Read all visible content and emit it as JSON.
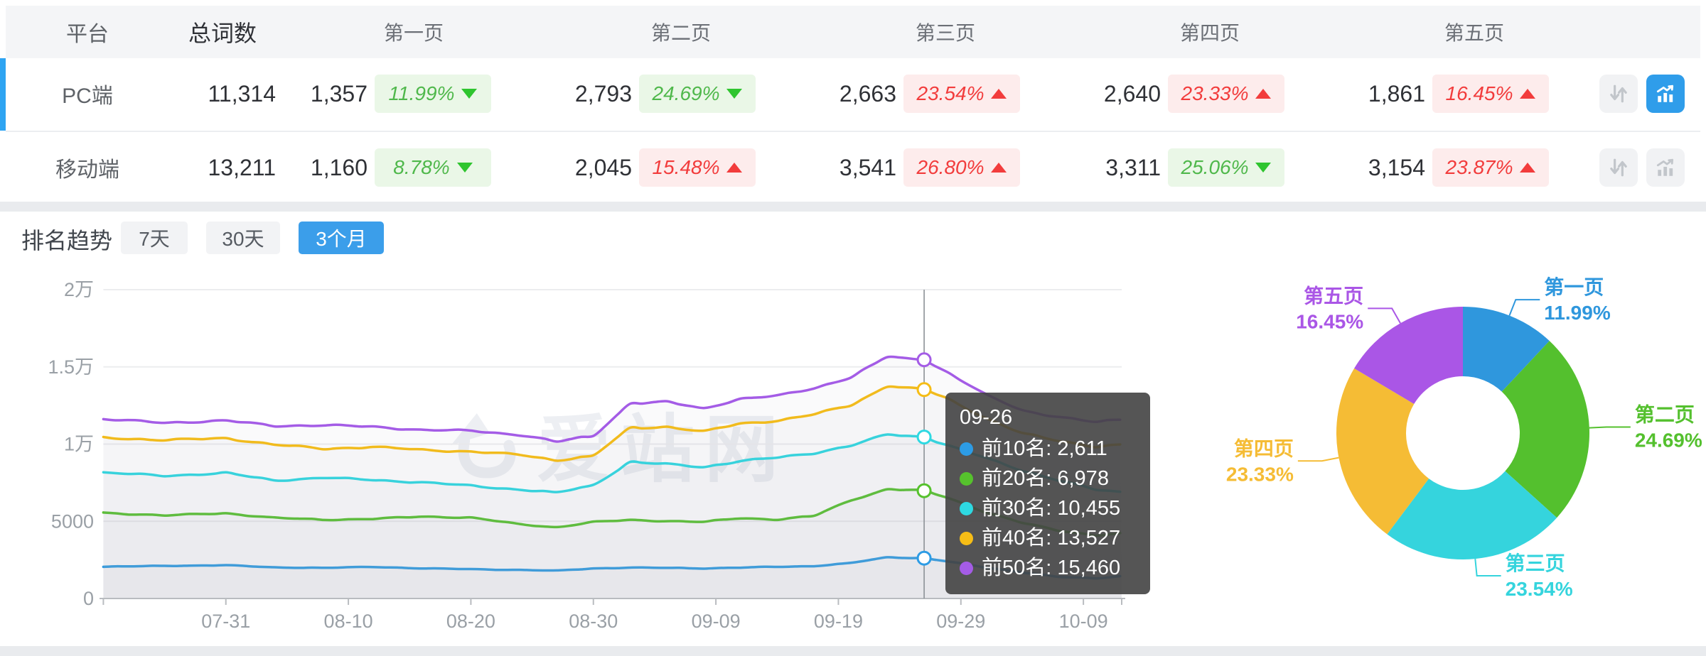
{
  "table": {
    "headers": [
      "平台",
      "总词数",
      "第一页",
      "第二页",
      "第三页",
      "第四页",
      "第五页"
    ],
    "rows": [
      {
        "platform": "PC端",
        "total": "11,314",
        "selected": true,
        "pages": [
          {
            "count": "1,357",
            "pct": "11.99%",
            "dir": "down"
          },
          {
            "count": "2,793",
            "pct": "24.69%",
            "dir": "down"
          },
          {
            "count": "2,663",
            "pct": "23.54%",
            "dir": "up"
          },
          {
            "count": "2,640",
            "pct": "23.33%",
            "dir": "up"
          },
          {
            "count": "1,861",
            "pct": "16.45%",
            "dir": "up"
          }
        ]
      },
      {
        "platform": "移动端",
        "total": "13,211",
        "selected": false,
        "pages": [
          {
            "count": "1,160",
            "pct": "8.78%",
            "dir": "down"
          },
          {
            "count": "2,045",
            "pct": "15.48%",
            "dir": "up"
          },
          {
            "count": "3,541",
            "pct": "26.80%",
            "dir": "up"
          },
          {
            "count": "3,311",
            "pct": "25.06%",
            "dir": "down"
          },
          {
            "count": "3,154",
            "pct": "23.87%",
            "dir": "up"
          }
        ]
      }
    ]
  },
  "trend": {
    "title": "排名趋势",
    "tabs": [
      {
        "label": "7天",
        "active": false
      },
      {
        "label": "30天",
        "active": false
      },
      {
        "label": "3个月",
        "active": true
      }
    ],
    "tooltip": {
      "title": "09-26",
      "items": [
        {
          "text": "前10名: 2,611",
          "color": "#2d9ce5"
        },
        {
          "text": "前20名: 6,978",
          "color": "#56c22d"
        },
        {
          "text": "前30名: 10,455",
          "color": "#2ed9e2"
        },
        {
          "text": "前40名: 13,527",
          "color": "#f6bd16"
        },
        {
          "text": "前50名: 15,460",
          "color": "#a45ce6"
        }
      ]
    }
  },
  "watermark": {
    "text": "爱站网"
  },
  "colors": {
    "accent_blue": "#2f9dea",
    "badge_up_red": "#f23c3c",
    "badge_down_green": "#4fb84b",
    "axis_text": "#9aa0a6",
    "grid": "#ecedef",
    "axis_line": "#b9bcc0",
    "crosshair": "#8c9196"
  },
  "chart_data": [
    {
      "type": "line",
      "title": "排名趋势 (3个月)",
      "ylim": [
        0,
        20000
      ],
      "grid": true,
      "y_ticks": [
        {
          "label": "0",
          "value": 0
        },
        {
          "label": "5000",
          "value": 5000
        },
        {
          "label": "1万",
          "value": 10000
        },
        {
          "label": "1.5万",
          "value": 15000
        },
        {
          "label": "2万",
          "value": 20000
        }
      ],
      "x_ticks": [
        {
          "label": "07-31",
          "day": 10
        },
        {
          "label": "08-10",
          "day": 20
        },
        {
          "label": "08-20",
          "day": 30
        },
        {
          "label": "08-30",
          "day": 40
        },
        {
          "label": "09-09",
          "day": 50
        },
        {
          "label": "09-19",
          "day": 60
        },
        {
          "label": "09-29",
          "day": 70
        },
        {
          "label": "10-09",
          "day": 80
        }
      ],
      "day_range": [
        0,
        83
      ],
      "highlight": {
        "date": "09-26",
        "day": 67
      },
      "anchor_days": [
        0,
        5,
        10,
        14,
        18,
        22,
        26,
        30,
        34,
        37,
        40,
        43,
        46,
        49,
        52,
        55,
        58,
        61,
        64,
        67,
        69,
        72,
        75,
        78,
        81,
        83
      ],
      "series": [
        {
          "name": "前10名",
          "color": "#2d9ce5",
          "highlight_value": 2611,
          "anchor_values": [
            2050,
            2120,
            2150,
            2020,
            1980,
            2050,
            1950,
            1900,
            1850,
            1800,
            1950,
            2000,
            1980,
            1950,
            2000,
            2050,
            2100,
            2300,
            2660,
            2611,
            2400,
            2000,
            1700,
            1400,
            1300,
            1450
          ]
        },
        {
          "name": "前20名",
          "color": "#56c22d",
          "highlight_value": 6978,
          "anchor_values": [
            5550,
            5380,
            5520,
            5220,
            5100,
            5160,
            5300,
            5240,
            4800,
            4620,
            4950,
            5080,
            5020,
            4960,
            5200,
            5120,
            5350,
            6350,
            7080,
            6978,
            6500,
            5600,
            4900,
            4400,
            4100,
            4200
          ]
        },
        {
          "name": "前30名",
          "color": "#2ed9e2",
          "highlight_value": 10455,
          "anchor_values": [
            8150,
            7950,
            8120,
            7650,
            7820,
            7680,
            7520,
            7300,
            7050,
            6850,
            7350,
            8820,
            8700,
            8520,
            8900,
            9120,
            9420,
            9900,
            10620,
            10455,
            9900,
            9100,
            8300,
            7650,
            7050,
            6900
          ]
        },
        {
          "name": "前40名",
          "color": "#f6bd16",
          "highlight_value": 13527,
          "anchor_values": [
            10420,
            10260,
            10380,
            9960,
            9700,
            9820,
            9620,
            9520,
            9300,
            8960,
            9250,
            11020,
            11120,
            10820,
            11320,
            11520,
            11920,
            12520,
            13760,
            13527,
            12900,
            11700,
            10700,
            10200,
            9850,
            9950
          ]
        },
        {
          "name": "前50名",
          "color": "#a45ce6",
          "highlight_value": 15460,
          "anchor_values": [
            11620,
            11380,
            11520,
            11180,
            11220,
            11120,
            10920,
            10860,
            10600,
            10160,
            10550,
            12620,
            12720,
            12320,
            12920,
            13120,
            13620,
            14320,
            15640,
            15460,
            14600,
            13200,
            12200,
            11750,
            11420,
            11600
          ]
        }
      ]
    },
    {
      "type": "pie",
      "donut": true,
      "slices": [
        {
          "name": "第一页",
          "pct": 11.99,
          "pct_label": "11.99%",
          "color": "#2f97dd"
        },
        {
          "name": "第二页",
          "pct": 24.69,
          "pct_label": "24.69%",
          "color": "#54c02e"
        },
        {
          "name": "第三页",
          "pct": 23.54,
          "pct_label": "23.54%",
          "color": "#35d4dd"
        },
        {
          "name": "第四页",
          "pct": 23.33,
          "pct_label": "23.33%",
          "color": "#f5bc35"
        },
        {
          "name": "第五页",
          "pct": 16.45,
          "pct_label": "16.45%",
          "color": "#aa56e6"
        }
      ]
    }
  ]
}
